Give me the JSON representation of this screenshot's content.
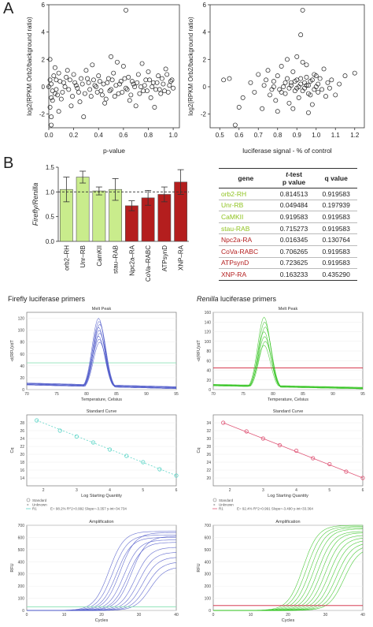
{
  "panel_labels": {
    "a": "A",
    "b": "B"
  },
  "colors": {
    "green_bar": "#c9ec8c",
    "red_bar": "#b41e1e",
    "green_gene": "#8fc31f",
    "red_gene": "#b41e1e",
    "blue_trace": "#4a55c8",
    "green_trace": "#2ec21a",
    "threshold_red": "#d0203a"
  },
  "table": {
    "headers": {
      "gene": "gene",
      "ttest_italic": "t",
      "ttest_rest": "-test",
      "ttest_line2": "p value",
      "q": "q value"
    },
    "rows": [
      {
        "gene": "orb2-RH",
        "p": "0.814513",
        "q": "0.919583",
        "group": "green"
      },
      {
        "gene": "Unr-RB",
        "p": "0.049484",
        "q": "0.197939",
        "group": "green"
      },
      {
        "gene": "CaMKII",
        "p": "0.919583",
        "q": "0.919583",
        "group": "green"
      },
      {
        "gene": "stau-RAB",
        "p": "0.715273",
        "q": "0.919583",
        "group": "green"
      },
      {
        "gene": "Npc2a-RA",
        "p": "0.016345",
        "q": "0.130764",
        "group": "red"
      },
      {
        "gene": "CoVa-RABC",
        "p": "0.706265",
        "q": "0.919583",
        "group": "red"
      },
      {
        "gene": "ATPsynD",
        "p": "0.723625",
        "q": "0.919583",
        "group": "red"
      },
      {
        "gene": "XNP-RA",
        "p": "0.163233",
        "q": "0.435290",
        "group": "red"
      }
    ]
  },
  "qpcr": {
    "firefly_title": "Firefly luciferase primers",
    "renilla_title_italic": "Renilla",
    "renilla_title_rest": " luciferase primers",
    "melt_title": "Melt Peak",
    "melt_ylabel": "-d(RFU)/dT",
    "melt_xlabel": "Temperature, Celsius",
    "std_title": "Standard Curve",
    "std_ylabel": "Cq",
    "std_xlabel": "Log Starting Quantity",
    "amp_title": "Amplification",
    "amp_ylabel": "RFU",
    "amp_xlabel": "Cycles",
    "legend_standard": "Standard",
    "legend_unknown": "Unknown",
    "legend_fit_left": "E= 98.2% R^2=0.992 Slope=-3.357 y-int=34.734",
    "legend_fit_right": "E= 92.4% R^2=0.991 Slope=-3.490 y-int=33.364",
    "legend_fit_label": "R1"
  },
  "chart_data": [
    {
      "type": "scatter",
      "panel": "A-left",
      "xlabel": "p-value",
      "ylabel": "log2(RPKM Orb2/background ratio)",
      "xlim": [
        0.0,
        1.05
      ],
      "ylim": [
        -3,
        6
      ],
      "xticks": [
        0.0,
        0.2,
        0.4,
        0.6,
        0.8,
        1.0
      ],
      "xtick_labels": [
        "0.0",
        "0.2",
        "0.4",
        "0.6",
        "0.8",
        "1.0"
      ],
      "yticks": [
        -2,
        0,
        2,
        4,
        6
      ],
      "ytick_labels": [
        "-2",
        "0",
        "2",
        "4",
        "6"
      ],
      "points": [
        [
          0.62,
          5.6
        ],
        [
          0.02,
          -2.2
        ],
        [
          0.02,
          -2.8
        ],
        [
          0.01,
          -1.5
        ],
        [
          0.03,
          -1.0
        ],
        [
          0.01,
          2.0
        ],
        [
          0.05,
          1.4
        ],
        [
          0.08,
          1.0
        ],
        [
          0.06,
          0.5
        ],
        [
          0.02,
          0.2
        ],
        [
          0.0,
          0.0
        ],
        [
          0.03,
          -0.3
        ],
        [
          0.05,
          -0.5
        ],
        [
          0.07,
          -0.6
        ],
        [
          0.1,
          -0.9
        ],
        [
          0.12,
          0.3
        ],
        [
          0.14,
          0.7
        ],
        [
          0.16,
          -0.2
        ],
        [
          0.18,
          -1.4
        ],
        [
          0.2,
          0.9
        ],
        [
          0.22,
          0.1
        ],
        [
          0.24,
          -0.4
        ],
        [
          0.26,
          0.6
        ],
        [
          0.28,
          -2.2
        ],
        [
          0.3,
          1.2
        ],
        [
          0.32,
          0.3
        ],
        [
          0.34,
          -0.7
        ],
        [
          0.36,
          0.5
        ],
        [
          0.38,
          0.0
        ],
        [
          0.4,
          0.8
        ],
        [
          0.42,
          -0.3
        ],
        [
          0.44,
          0.2
        ],
        [
          0.46,
          -0.9
        ],
        [
          0.48,
          0.6
        ],
        [
          0.5,
          -0.2
        ],
        [
          0.52,
          1.0
        ],
        [
          0.54,
          0.1
        ],
        [
          0.56,
          -0.5
        ],
        [
          0.58,
          0.4
        ],
        [
          0.6,
          1.5
        ],
        [
          0.62,
          -0.1
        ],
        [
          0.64,
          0.7
        ],
        [
          0.66,
          -0.6
        ],
        [
          0.68,
          0.2
        ],
        [
          0.7,
          -1.4
        ],
        [
          0.72,
          0.9
        ],
        [
          0.74,
          0.0
        ],
        [
          0.76,
          -0.3
        ],
        [
          0.78,
          0.5
        ],
        [
          0.8,
          1.1
        ],
        [
          0.82,
          -0.8
        ],
        [
          0.84,
          0.3
        ],
        [
          0.86,
          -0.2
        ],
        [
          0.88,
          0.8
        ],
        [
          0.9,
          -0.5
        ],
        [
          0.92,
          0.2
        ],
        [
          0.94,
          1.3
        ],
        [
          0.96,
          -0.4
        ],
        [
          0.98,
          0.4
        ],
        [
          1.0,
          -0.1
        ],
        [
          0.5,
          2.2
        ],
        [
          0.55,
          1.8
        ],
        [
          0.45,
          -1.2
        ],
        [
          0.35,
          1.6
        ],
        [
          0.25,
          -1.1
        ],
        [
          0.15,
          1.2
        ],
        [
          0.85,
          -1.5
        ],
        [
          0.75,
          1.7
        ],
        [
          0.65,
          -1.0
        ],
        [
          0.95,
          0.9
        ],
        [
          0.08,
          -1.8
        ],
        [
          0.04,
          0.8
        ],
        [
          0.02,
          -0.8
        ],
        [
          0.01,
          0.5
        ],
        [
          0.06,
          -0.2
        ],
        [
          0.09,
          0.4
        ],
        [
          0.11,
          -0.4
        ],
        [
          0.13,
          0.0
        ],
        [
          0.17,
          0.5
        ],
        [
          0.19,
          -0.7
        ],
        [
          0.21,
          0.3
        ],
        [
          0.23,
          -0.1
        ],
        [
          0.27,
          0.2
        ],
        [
          0.29,
          -0.5
        ],
        [
          0.31,
          0.6
        ],
        [
          0.33,
          -0.2
        ],
        [
          0.37,
          0.1
        ],
        [
          0.39,
          -0.4
        ],
        [
          0.41,
          0.4
        ],
        [
          0.43,
          -0.6
        ],
        [
          0.47,
          0.3
        ],
        [
          0.49,
          -0.3
        ],
        [
          0.51,
          0.5
        ],
        [
          0.53,
          -0.7
        ],
        [
          0.57,
          0.2
        ],
        [
          0.59,
          -0.4
        ],
        [
          0.61,
          0.6
        ],
        [
          0.63,
          -0.2
        ],
        [
          0.67,
          0.4
        ],
        [
          0.69,
          0.0
        ],
        [
          0.71,
          0.3
        ],
        [
          0.73,
          -0.5
        ],
        [
          0.77,
          0.1
        ],
        [
          0.79,
          -0.3
        ],
        [
          0.81,
          0.5
        ],
        [
          0.83,
          0.0
        ],
        [
          0.87,
          0.3
        ],
        [
          0.89,
          -0.2
        ],
        [
          0.91,
          0.6
        ],
        [
          0.93,
          -0.3
        ],
        [
          0.97,
          0.1
        ],
        [
          0.99,
          0.5
        ]
      ]
    },
    {
      "type": "scatter",
      "panel": "A-right",
      "xlabel": "luciferase signal - % of control",
      "ylabel": "log2(RPKM Orb2/background ratio)",
      "xlim": [
        0.45,
        1.25
      ],
      "ylim": [
        -3,
        6
      ],
      "xticks": [
        0.5,
        0.6,
        0.7,
        0.8,
        0.9,
        1.0,
        1.1,
        1.2
      ],
      "xtick_labels": [
        "0.5",
        "0.6",
        "0.7",
        "0.8",
        "0.9",
        "1.0",
        "1.1",
        "1.2"
      ],
      "yticks": [
        -2,
        0,
        2,
        4,
        6
      ],
      "ytick_labels": [
        "-2",
        "0",
        "2",
        "4",
        "6"
      ],
      "points": [
        [
          0.93,
          5.6
        ],
        [
          0.92,
          3.8
        ],
        [
          0.52,
          0.5
        ],
        [
          0.55,
          0.6
        ],
        [
          0.58,
          -2.8
        ],
        [
          0.6,
          -1.5
        ],
        [
          0.62,
          -0.8
        ],
        [
          0.66,
          0.3
        ],
        [
          0.68,
          -0.4
        ],
        [
          0.7,
          0.9
        ],
        [
          0.72,
          -1.6
        ],
        [
          0.73,
          0.1
        ],
        [
          0.75,
          1.2
        ],
        [
          0.76,
          -0.6
        ],
        [
          0.78,
          0.4
        ],
        [
          0.79,
          -1.0
        ],
        [
          0.8,
          0.8
        ],
        [
          0.81,
          -0.2
        ],
        [
          0.82,
          1.5
        ],
        [
          0.83,
          0.0
        ],
        [
          0.84,
          -0.5
        ],
        [
          0.85,
          0.6
        ],
        [
          0.86,
          -1.2
        ],
        [
          0.87,
          0.3
        ],
        [
          0.88,
          1.1
        ],
        [
          0.89,
          -0.3
        ],
        [
          0.9,
          0.5
        ],
        [
          0.91,
          -0.8
        ],
        [
          0.92,
          0.2
        ],
        [
          0.93,
          1.8
        ],
        [
          0.94,
          -0.1
        ],
        [
          0.95,
          0.7
        ],
        [
          0.96,
          -0.5
        ],
        [
          0.97,
          0.4
        ],
        [
          0.98,
          -1.3
        ],
        [
          0.99,
          0.9
        ],
        [
          1.0,
          0.0
        ],
        [
          1.01,
          -0.4
        ],
        [
          1.02,
          0.6
        ],
        [
          1.03,
          -0.2
        ],
        [
          1.04,
          1.3
        ],
        [
          1.05,
          -0.7
        ],
        [
          1.06,
          0.3
        ],
        [
          1.07,
          -0.1
        ],
        [
          1.08,
          0.5
        ],
        [
          1.1,
          -0.6
        ],
        [
          1.12,
          0.2
        ],
        [
          1.15,
          0.8
        ],
        [
          1.2,
          1.0
        ],
        [
          0.85,
          2.0
        ],
        [
          0.9,
          2.2
        ],
        [
          0.95,
          1.6
        ],
        [
          0.8,
          -1.8
        ],
        [
          0.88,
          -1.6
        ],
        [
          0.96,
          -1.9
        ],
        [
          0.87,
          0.1
        ],
        [
          0.89,
          0.4
        ],
        [
          0.91,
          0.0
        ],
        [
          0.93,
          -0.3
        ],
        [
          0.94,
          0.3
        ],
        [
          0.96,
          0.1
        ],
        [
          0.98,
          0.5
        ],
        [
          0.99,
          -0.2
        ],
        [
          1.01,
          0.2
        ],
        [
          0.86,
          -0.1
        ],
        [
          0.84,
          0.3
        ],
        [
          0.82,
          -0.4
        ],
        [
          0.9,
          -0.1
        ],
        [
          0.92,
          0.6
        ],
        [
          0.97,
          -0.6
        ],
        [
          1.0,
          0.8
        ],
        [
          0.95,
          0.1
        ],
        [
          0.78,
          0.0
        ],
        [
          0.74,
          0.5
        ],
        [
          0.77,
          -0.2
        ]
      ]
    },
    {
      "type": "bar",
      "panel": "B",
      "ylabel": "Firefly/Renilla",
      "ylim": [
        0.0,
        1.5
      ],
      "yticks": [
        0.0,
        0.5,
        1.0,
        1.5
      ],
      "ytick_labels": [
        "0.0",
        "0.5",
        "1.0",
        "1.5"
      ],
      "reference_line": 1.0,
      "categories": [
        "orb2–RH",
        "Unr–RB",
        "CamKII",
        "stau–RAB",
        "Npc2a–RA",
        "CoVa–RABC",
        "ATPsynD",
        "XNP–RA"
      ],
      "values": [
        1.05,
        1.3,
        1.02,
        1.05,
        0.72,
        0.88,
        0.95,
        1.2
      ],
      "errors": [
        0.25,
        0.12,
        0.08,
        0.22,
        0.1,
        0.15,
        0.15,
        0.25
      ],
      "groups": [
        "green",
        "green",
        "green",
        "green",
        "red",
        "red",
        "red",
        "red"
      ]
    },
    {
      "type": "line",
      "panel": "melt-left",
      "xlim": [
        70,
        95
      ],
      "xticks": [
        70,
        75,
        80,
        85,
        90,
        95
      ],
      "xtick_labels": [
        "70",
        "75",
        "80",
        "85",
        "90",
        "95"
      ],
      "ylim": [
        0,
        130
      ],
      "yticks": [
        0,
        20,
        40,
        60,
        80,
        100,
        120
      ],
      "ytick_labels": [
        "0",
        "20",
        "40",
        "60",
        "80",
        "100",
        "120"
      ],
      "threshold": 45,
      "peak_x": 82,
      "peak_heights": [
        120,
        115,
        110,
        105,
        100,
        95,
        90,
        85,
        80
      ]
    },
    {
      "type": "line",
      "panel": "melt-right",
      "xlim": [
        70,
        95
      ],
      "xticks": [
        70,
        75,
        80,
        85,
        90,
        95
      ],
      "xtick_labels": [
        "70",
        "75",
        "80",
        "85",
        "90",
        "95"
      ],
      "ylim": [
        0,
        160
      ],
      "yticks": [
        0,
        20,
        40,
        60,
        80,
        100,
        120,
        140,
        160
      ],
      "ytick_labels": [
        "0",
        "20",
        "40",
        "60",
        "80",
        "100",
        "120",
        "140",
        "160"
      ],
      "threshold": 45,
      "peak_x": 78.5,
      "peak_heights": [
        150,
        140,
        130,
        120,
        110,
        100,
        92
      ]
    },
    {
      "type": "scatter",
      "panel": "std-left",
      "xlim": [
        1.5,
        6
      ],
      "xticks": [
        2,
        3,
        4,
        5,
        6
      ],
      "xtick_labels": [
        "2",
        "3",
        "4",
        "5",
        "6"
      ],
      "ylim": [
        12,
        30
      ],
      "yticks": [
        14,
        16,
        18,
        20,
        22,
        24,
        26,
        28
      ],
      "ytick_labels": [
        "14",
        "16",
        "18",
        "20",
        "22",
        "24",
        "26",
        "28"
      ],
      "points": [
        [
          1.8,
          28.6
        ],
        [
          2.5,
          26.0
        ],
        [
          3.0,
          24.5
        ],
        [
          3.5,
          23.0
        ],
        [
          4.0,
          21.2
        ],
        [
          4.5,
          19.6
        ],
        [
          5.0,
          18.0
        ],
        [
          5.5,
          16.2
        ],
        [
          6.0,
          14.6
        ]
      ]
    },
    {
      "type": "scatter",
      "panel": "std-right",
      "xlim": [
        1.5,
        6
      ],
      "xticks": [
        2,
        3,
        4,
        5,
        6
      ],
      "xtick_labels": [
        "2",
        "3",
        "4",
        "5",
        "6"
      ],
      "ylim": [
        18,
        36
      ],
      "yticks": [
        20,
        22,
        24,
        26,
        28,
        30,
        32,
        34
      ],
      "ytick_labels": [
        "20",
        "22",
        "24",
        "26",
        "28",
        "30",
        "32",
        "34"
      ],
      "points": [
        [
          1.8,
          34.0
        ],
        [
          2.5,
          31.8
        ],
        [
          3.0,
          30.0
        ],
        [
          3.5,
          28.3
        ],
        [
          4.0,
          26.9
        ],
        [
          4.5,
          25.0
        ],
        [
          5.0,
          23.5
        ],
        [
          5.5,
          21.6
        ],
        [
          6.0,
          20.0
        ]
      ]
    },
    {
      "type": "line",
      "panel": "amp-left",
      "xlim": [
        0,
        40
      ],
      "xticks": [
        0,
        10,
        20,
        30,
        40
      ],
      "xtick_labels": [
        "0",
        "10",
        "20",
        "30",
        "40"
      ],
      "ylim": [
        0,
        700
      ],
      "yticks": [
        0,
        100,
        200,
        300,
        400,
        500,
        600,
        700
      ],
      "ytick_labels": [
        "0",
        "100",
        "200",
        "300",
        "400",
        "500",
        "600",
        "700"
      ],
      "threshold": 30,
      "midpoints": [
        22,
        23,
        24,
        25,
        26,
        27,
        28,
        29,
        30,
        31,
        32,
        33
      ],
      "plateaus": [
        650,
        620,
        600,
        640,
        580,
        560,
        610,
        520,
        480,
        440,
        400,
        360
      ]
    },
    {
      "type": "line",
      "panel": "amp-right",
      "xlim": [
        0,
        40
      ],
      "xticks": [
        0,
        10,
        20,
        30,
        40
      ],
      "xtick_labels": [
        "0",
        "10",
        "20",
        "30",
        "40"
      ],
      "ylim": [
        0,
        700
      ],
      "yticks": [
        0,
        100,
        200,
        300,
        400,
        500,
        600,
        700
      ],
      "ytick_labels": [
        "0",
        "100",
        "200",
        "300",
        "400",
        "500",
        "600",
        "700"
      ],
      "threshold": 40,
      "midpoints": [
        24,
        25,
        26,
        27,
        28,
        29,
        30,
        31,
        32,
        33,
        34,
        35
      ],
      "plateaus": [
        700,
        690,
        680,
        670,
        650,
        640,
        620,
        600,
        580,
        560,
        540,
        520
      ]
    }
  ]
}
